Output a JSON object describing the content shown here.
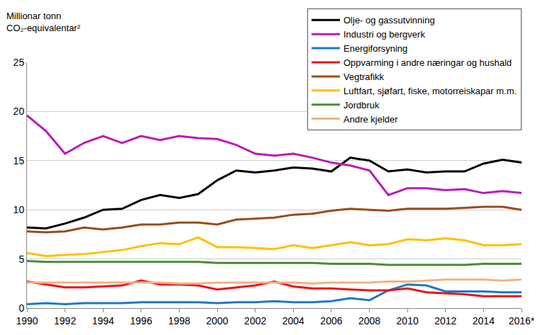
{
  "chart_data": {
    "type": "line",
    "y_label": "Millionar tonn\nCO₂-equivalentar²",
    "x": [
      1990,
      1991,
      1992,
      1993,
      1994,
      1995,
      1996,
      1997,
      1998,
      1999,
      2000,
      2001,
      2002,
      2003,
      2004,
      2005,
      2006,
      2007,
      2008,
      2009,
      2010,
      2011,
      2012,
      2013,
      2014,
      2015,
      2016
    ],
    "xlim": [
      1990,
      2016
    ],
    "xticks": [
      1990,
      1992,
      1994,
      1996,
      1998,
      2000,
      2002,
      2004,
      2006,
      2008,
      2010,
      2012,
      2014,
      {
        "value": 2016,
        "label": "2016*"
      }
    ],
    "ylim": [
      0,
      25
    ],
    "yticks": [
      0,
      5,
      10,
      15,
      20,
      25
    ],
    "grid": true,
    "legend": "top right",
    "series": [
      {
        "name": "Olje- og gassutvinning",
        "color": "#000000",
        "values": [
          8.2,
          8.1,
          8.6,
          9.2,
          10.0,
          10.1,
          11.0,
          11.5,
          11.2,
          11.6,
          13.0,
          14.0,
          13.8,
          14.0,
          14.3,
          14.2,
          13.9,
          15.3,
          15.0,
          13.9,
          14.1,
          13.8,
          13.9,
          13.9,
          14.7,
          15.1,
          14.8
        ]
      },
      {
        "name": "Industri og bergverk",
        "color": "#b81cb8",
        "values": [
          19.6,
          18.0,
          15.7,
          16.8,
          17.5,
          16.8,
          17.5,
          17.1,
          17.5,
          17.3,
          17.2,
          16.6,
          15.7,
          15.5,
          15.7,
          15.3,
          14.8,
          14.5,
          14.0,
          11.5,
          12.2,
          12.2,
          12.0,
          12.1,
          11.7,
          11.9,
          11.7
        ]
      },
      {
        "name": "Energiforsyning",
        "color": "#1f78c8",
        "values": [
          0.4,
          0.5,
          0.4,
          0.5,
          0.5,
          0.5,
          0.6,
          0.6,
          0.6,
          0.6,
          0.5,
          0.6,
          0.6,
          0.7,
          0.6,
          0.6,
          0.7,
          1.0,
          0.8,
          1.8,
          2.4,
          2.3,
          1.7,
          1.7,
          1.7,
          1.6,
          1.6
        ]
      },
      {
        "name": "Oppvarming i andre næringar og hushald",
        "color": "#e8141c",
        "values": [
          2.7,
          2.4,
          2.1,
          2.1,
          2.2,
          2.3,
          2.8,
          2.4,
          2.4,
          2.3,
          1.9,
          2.1,
          2.3,
          2.7,
          2.2,
          2.0,
          2.0,
          1.9,
          1.8,
          1.8,
          2.0,
          1.6,
          1.5,
          1.4,
          1.2,
          1.2,
          1.2
        ]
      },
      {
        "name": "Vegtrafikk",
        "color": "#994c1a",
        "values": [
          7.8,
          7.7,
          7.8,
          8.2,
          8.0,
          8.2,
          8.5,
          8.5,
          8.7,
          8.7,
          8.5,
          9.0,
          9.1,
          9.2,
          9.5,
          9.6,
          9.9,
          10.1,
          10.0,
          9.9,
          10.1,
          10.1,
          10.1,
          10.2,
          10.3,
          10.3,
          10.0
        ]
      },
      {
        "name": "Luftfart, sjøfart, fiske, motorreiskapar m.m.",
        "color": "#ffc000",
        "values": [
          5.6,
          5.3,
          5.4,
          5.5,
          5.7,
          5.9,
          6.3,
          6.6,
          6.5,
          7.2,
          6.2,
          6.2,
          6.1,
          6.0,
          6.4,
          6.1,
          6.4,
          6.7,
          6.4,
          6.5,
          7.0,
          6.9,
          7.1,
          6.9,
          6.4,
          6.4,
          6.5
        ]
      },
      {
        "name": "Jordbruk",
        "color": "#4a8a3a",
        "values": [
          4.8,
          4.7,
          4.7,
          4.7,
          4.7,
          4.7,
          4.7,
          4.7,
          4.7,
          4.7,
          4.6,
          4.6,
          4.6,
          4.6,
          4.6,
          4.6,
          4.5,
          4.5,
          4.5,
          4.4,
          4.4,
          4.4,
          4.4,
          4.4,
          4.5,
          4.5,
          4.5
        ]
      },
      {
        "name": "Andre kjelder",
        "color": "#f4b183",
        "values": [
          2.6,
          2.6,
          2.6,
          2.6,
          2.6,
          2.6,
          2.6,
          2.6,
          2.5,
          2.5,
          2.6,
          2.6,
          2.6,
          2.6,
          2.6,
          2.5,
          2.6,
          2.6,
          2.6,
          2.7,
          2.7,
          2.8,
          2.9,
          2.9,
          2.9,
          2.8,
          2.9
        ]
      }
    ]
  }
}
